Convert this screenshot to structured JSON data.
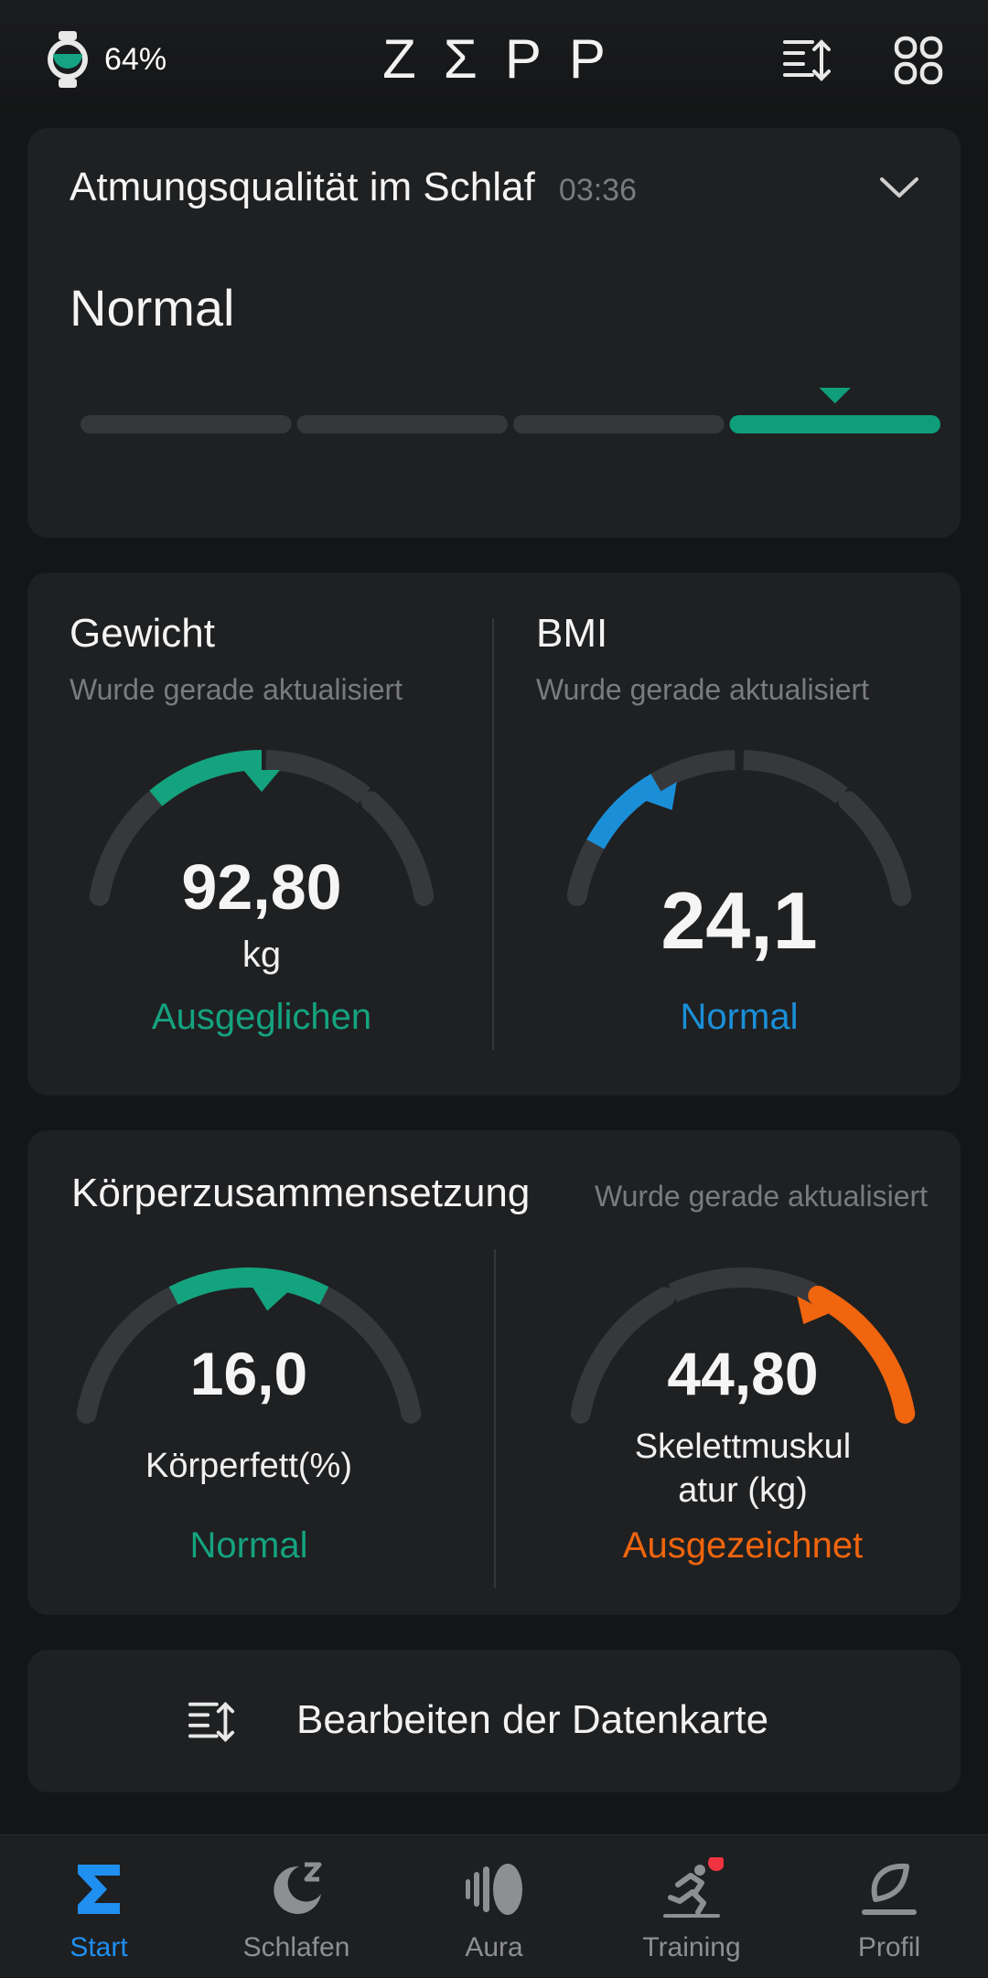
{
  "header": {
    "battery": "64%",
    "logo": "ZΣPP"
  },
  "breathing_card": {
    "title": "Atmungsqualität im Schlaf",
    "time": "03:36",
    "status": "Normal",
    "active_segment": 4,
    "segments": 4,
    "accent": "#0f9d7a"
  },
  "weight_card": {
    "weight": {
      "title": "Gewicht",
      "subtitle": "Wurde gerade aktualisiert",
      "value": "92,80",
      "unit": "kg",
      "status": "Ausgeglichen",
      "status_color": "#14a37f"
    },
    "bmi": {
      "title": "BMI",
      "subtitle": "Wurde gerade aktualisiert",
      "value": "24,1",
      "status": "Normal",
      "status_color": "#1a8fd8"
    }
  },
  "body_card": {
    "title": "Körperzusammensetzung",
    "subtitle": "Wurde gerade aktualisiert",
    "fat": {
      "value": "16,0",
      "label": "Körperfett(%)",
      "status": "Normal",
      "status_color": "#14a37f"
    },
    "muscle": {
      "value": "44,80",
      "label_line1": "Skelettmuskul",
      "label_line2": "atur (kg)",
      "status": "Ausgezeichnet",
      "status_color": "#f0650e"
    }
  },
  "edit_card": {
    "label": "Bearbeiten der Datenkarte"
  },
  "nav": {
    "items": [
      {
        "label": "Start",
        "icon": "sigma-icon",
        "active": true
      },
      {
        "label": "Schlafen",
        "icon": "moon-icon",
        "active": false
      },
      {
        "label": "Aura",
        "icon": "aura-icon",
        "active": false
      },
      {
        "label": "Training",
        "icon": "running-icon",
        "active": false
      },
      {
        "label": "Profil",
        "icon": "profile-icon",
        "active": false
      }
    ],
    "active_color": "#1f8ff0"
  }
}
